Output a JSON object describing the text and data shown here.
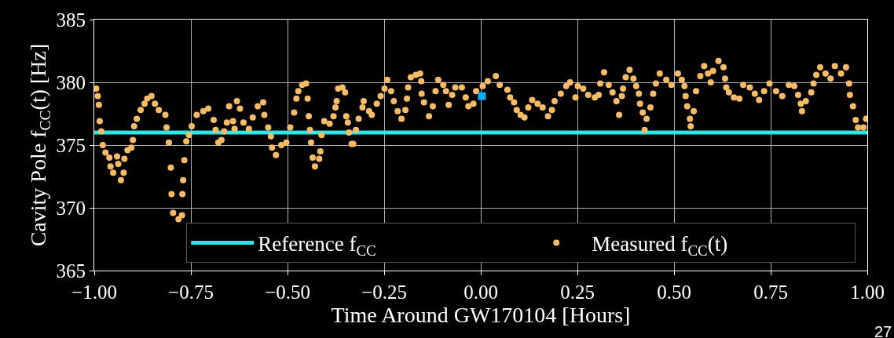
{
  "chart_data": {
    "type": "scatter",
    "xlabel": "Time Around GW170104 [Hours]",
    "ylabel": "Cavity Pole f$_{CC}$(t) [Hz]",
    "xlim": [
      -1.0,
      1.0
    ],
    "xticks": [
      {
        "value": -1.0,
        "label": "−1.00"
      },
      {
        "value": -0.75,
        "label": "−0.75"
      },
      {
        "value": -0.5,
        "label": "−0.50"
      },
      {
        "value": -0.25,
        "label": "−0.25"
      },
      {
        "value": 0,
        "label": "0.00"
      },
      {
        "value": 0.25,
        "label": "0.25"
      },
      {
        "value": 0.5,
        "label": "0.50"
      },
      {
        "value": 0.75,
        "label": "0.75"
      },
      {
        "value": 1.0,
        "label": "1.00"
      }
    ],
    "ylim": [
      365,
      385
    ],
    "yticks": [
      365,
      370,
      375,
      380,
      385
    ],
    "grid": true,
    "legend": "bottom right",
    "ref_lines": [
      {
        "axis": "y",
        "value": 376,
        "label": "Reference f$_{CC}$",
        "color": "#2ee6e6"
      }
    ],
    "series": [
      {
        "name": "Measured f$_{CC}$(t)",
        "color": "#f9bc66",
        "marker": "circle",
        "x": [
          -0.995,
          -0.991,
          -0.988,
          -0.986,
          -0.982,
          -0.978,
          -0.971,
          -0.961,
          -0.958,
          -0.951,
          -0.941,
          -0.938,
          -0.931,
          -0.924,
          -0.922,
          -0.914,
          -0.904,
          -0.9,
          -0.897,
          -0.89,
          -0.88,
          -0.87,
          -0.863,
          -0.852,
          -0.843,
          -0.833,
          -0.816,
          -0.813,
          -0.807,
          -0.802,
          -0.8,
          -0.796,
          -0.782,
          -0.773,
          -0.772,
          -0.77,
          -0.767,
          -0.762,
          -0.755,
          -0.748,
          -0.735,
          -0.718,
          -0.705,
          -0.691,
          -0.686,
          -0.679,
          -0.671,
          -0.664,
          -0.657,
          -0.651,
          -0.641,
          -0.637,
          -0.631,
          -0.623,
          -0.614,
          -0.6,
          -0.59,
          -0.577,
          -0.563,
          -0.56,
          -0.55,
          -0.543,
          -0.54,
          -0.53,
          -0.516,
          -0.503,
          -0.493,
          -0.483,
          -0.477,
          -0.472,
          -0.462,
          -0.452,
          -0.448,
          -0.445,
          -0.442,
          -0.439,
          -0.435,
          -0.429,
          -0.418,
          -0.415,
          -0.412,
          -0.405,
          -0.391,
          -0.381,
          -0.376,
          -0.373,
          -0.369,
          -0.358,
          -0.351,
          -0.348,
          -0.344,
          -0.341,
          -0.334,
          -0.33,
          -0.323,
          -0.316,
          -0.306,
          -0.303,
          -0.289,
          -0.282,
          -0.269,
          -0.259,
          -0.249,
          -0.242,
          -0.232,
          -0.225,
          -0.215,
          -0.205,
          -0.195,
          -0.191,
          -0.188,
          -0.181,
          -0.168,
          -0.157,
          -0.154,
          -0.153,
          -0.147,
          -0.134,
          -0.124,
          -0.117,
          -0.11,
          -0.097,
          -0.09,
          -0.083,
          -0.074,
          -0.066,
          -0.049,
          -0.039,
          -0.032,
          -0.019,
          -0.012,
          0.005,
          0.018,
          0.039,
          0.049,
          0.069,
          0.076,
          0.086,
          0.093,
          0.103,
          0.113,
          0.123,
          0.133,
          0.147,
          0.16,
          0.174,
          0.184,
          0.191,
          0.207,
          0.221,
          0.231,
          0.245,
          0.251,
          0.265,
          0.278,
          0.295,
          0.305,
          0.309,
          0.319,
          0.331,
          0.341,
          0.351,
          0.358,
          0.365,
          0.368,
          0.375,
          0.385,
          0.395,
          0.402,
          0.409,
          0.412,
          0.419,
          0.424,
          0.429,
          0.439,
          0.446,
          0.453,
          0.463,
          0.48,
          0.493,
          0.51,
          0.52,
          0.527,
          0.53,
          0.534,
          0.541,
          0.543,
          0.551,
          0.557,
          0.568,
          0.578,
          0.588,
          0.595,
          0.601,
          0.615,
          0.628,
          0.632,
          0.635,
          0.642,
          0.655,
          0.669,
          0.679,
          0.696,
          0.709,
          0.72,
          0.733,
          0.747,
          0.764,
          0.78,
          0.797,
          0.811,
          0.821,
          0.828,
          0.831,
          0.841,
          0.855,
          0.861,
          0.868,
          0.878,
          0.892,
          0.905,
          0.916,
          0.932,
          0.945,
          0.953,
          0.955,
          0.963,
          0.97,
          0.976,
          0.99,
          0.997
        ],
        "values": [
          379.5,
          378.9,
          378.2,
          376.9,
          376.1,
          375.0,
          374.4,
          374.0,
          373.3,
          372.8,
          374.1,
          373.5,
          372.2,
          372.8,
          373.9,
          374.6,
          374.8,
          375.4,
          376.5,
          377.1,
          377.8,
          378.3,
          378.7,
          378.9,
          378.3,
          377.8,
          377.4,
          376.4,
          375.2,
          373.2,
          371.1,
          369.6,
          369.1,
          369.4,
          371.1,
          372.2,
          373.8,
          375.3,
          375.8,
          376.5,
          377.4,
          377.7,
          377.9,
          377.0,
          376.2,
          375.2,
          375.4,
          376.1,
          376.8,
          378.1,
          376.9,
          376.3,
          378.5,
          377.9,
          376.8,
          376.3,
          377.2,
          378.1,
          378.4,
          377.4,
          376.4,
          375.7,
          374.8,
          374.2,
          375.0,
          375.2,
          376.4,
          377.6,
          378.7,
          379.3,
          379.8,
          379.9,
          378.7,
          377.3,
          376.2,
          375.2,
          374.0,
          373.3,
          373.9,
          374.5,
          375.8,
          376.9,
          376.7,
          377.3,
          378.0,
          378.5,
          379.5,
          379.6,
          379.2,
          377.3,
          376.8,
          376.0,
          375.1,
          375.1,
          376.2,
          377.1,
          378.0,
          378.5,
          377.7,
          377.4,
          378.3,
          378.9,
          379.5,
          380.2,
          379.3,
          378.5,
          377.7,
          377.1,
          377.8,
          378.7,
          379.6,
          380.4,
          380.6,
          380.7,
          380.1,
          379.1,
          378.4,
          377.3,
          378.1,
          379.3,
          380.2,
          379.8,
          379.3,
          378.2,
          379.0,
          379.6,
          379.6,
          378.8,
          378.1,
          378.3,
          379.3,
          379.7,
          380.1,
          380.5,
          379.8,
          379.4,
          378.8,
          378.4,
          377.8,
          377.4,
          377.2,
          378.0,
          378.6,
          378.3,
          378.0,
          377.3,
          377.8,
          378.5,
          379.1,
          379.7,
          380.0,
          378.8,
          379.7,
          379.5,
          379.0,
          378.8,
          379.0,
          379.9,
          380.8,
          379.8,
          379.2,
          378.5,
          377.4,
          378.9,
          379.5,
          380.4,
          381.0,
          380.3,
          379.7,
          379.1,
          378.3,
          377.6,
          376.2,
          377.1,
          378.0,
          379.1,
          379.9,
          380.7,
          380.2,
          379.8,
          380.7,
          380.2,
          379.7,
          378.9,
          378.1,
          377.1,
          376.5,
          377.7,
          379.3,
          380.5,
          381.3,
          380.7,
          380.0,
          380.9,
          381.7,
          381.2,
          380.3,
          379.6,
          379.2,
          378.8,
          378.7,
          379.8,
          379.6,
          379.1,
          378.6,
          379.3,
          379.9,
          379.3,
          378.9,
          379.8,
          379.7,
          379.0,
          378.3,
          377.7,
          378.5,
          379.2,
          379.9,
          380.6,
          381.2,
          380.7,
          380.3,
          381.3,
          380.7,
          381.2,
          379.9,
          379.0,
          378.1,
          377.0,
          376.4,
          376.4,
          377.1
        ]
      },
      {
        "color": "#00b0f0",
        "marker": "square",
        "x": [
          0.003
        ],
        "values": [
          378.9
        ]
      }
    ],
    "annotations": [
      "27"
    ]
  }
}
